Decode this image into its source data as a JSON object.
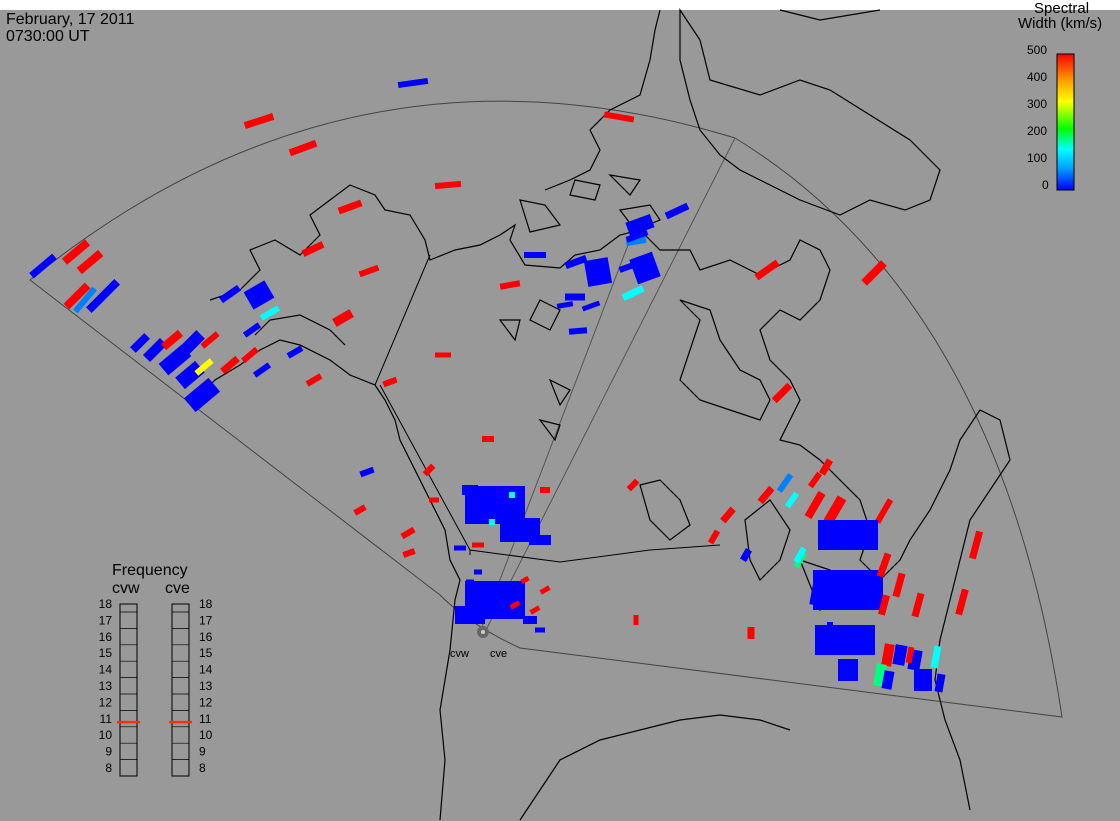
{
  "header": {
    "date": "February, 17 2011",
    "time": "0730:00 UT"
  },
  "colorbar": {
    "title_line1": "Spectral",
    "title_line2": "Width (km/s)",
    "ticks": [
      "500",
      "400",
      "300",
      "200",
      "100",
      "0"
    ],
    "colors": [
      "#0000ff",
      "#00a0ff",
      "#00ffff",
      "#00ff00",
      "#ffff00",
      "#ffa000",
      "#ff0000"
    ]
  },
  "frequency_panel": {
    "title": "Frequency",
    "radars": [
      "cvw",
      "cve"
    ],
    "ticks": [
      "18",
      "17",
      "16",
      "15",
      "14",
      "13",
      "12",
      "11",
      "10",
      "9",
      "8"
    ],
    "marker_mhz": 10.8,
    "marker_color": "#ff3000"
  },
  "radar_sites": [
    "cvw",
    "cve"
  ],
  "colors": {
    "background": "#999999",
    "coast": "#000000",
    "low_width": "#0000ff",
    "high_width": "#ff0000"
  }
}
